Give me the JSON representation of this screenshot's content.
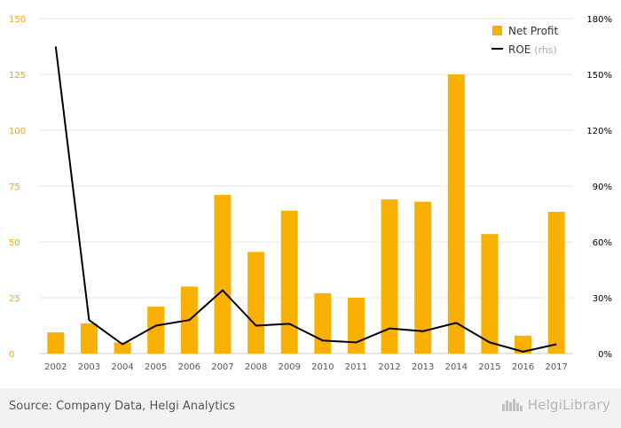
{
  "chart_data": {
    "type": "bar+line",
    "categories": [
      "2002",
      "2003",
      "2004",
      "2005",
      "2006",
      "2007",
      "2008",
      "2009",
      "2010",
      "2011",
      "2012",
      "2013",
      "2014",
      "2015",
      "2016",
      "2017"
    ],
    "series": [
      {
        "name": "Net Profit",
        "type": "bar",
        "axis": "left",
        "values": [
          9.5,
          13.5,
          5,
          21,
          30,
          71,
          45.5,
          64,
          27,
          25,
          69,
          68,
          125,
          53.5,
          8,
          63.5
        ]
      },
      {
        "name": "ROE",
        "name_suffix": "(rhs)",
        "type": "line",
        "axis": "right",
        "values": [
          165,
          18,
          5,
          15,
          18,
          34,
          15,
          16,
          7,
          6,
          13.5,
          12,
          16.5,
          6,
          1,
          5
        ]
      }
    ],
    "left_axis": {
      "ylim": [
        0,
        150
      ],
      "ticks": [
        "0",
        "25",
        "50",
        "75",
        "100",
        "125",
        "150"
      ],
      "values": [
        0,
        25,
        50,
        75,
        100,
        125,
        150
      ]
    },
    "right_axis": {
      "ylim": [
        0,
        180
      ],
      "ticks": [
        "0%",
        "30%",
        "60%",
        "90%",
        "120%",
        "150%",
        "180%"
      ],
      "values": [
        0,
        30,
        60,
        90,
        120,
        150,
        180
      ]
    },
    "legend_position": "top-right",
    "grid": true,
    "colors": {
      "bar": "#f9b000",
      "line": "#000000",
      "left_tick": "#f0a800",
      "right_tick": "#000000"
    }
  },
  "footer": {
    "source": "Source: Company Data, Helgi Analytics",
    "logo": "HelgiLibrary"
  }
}
